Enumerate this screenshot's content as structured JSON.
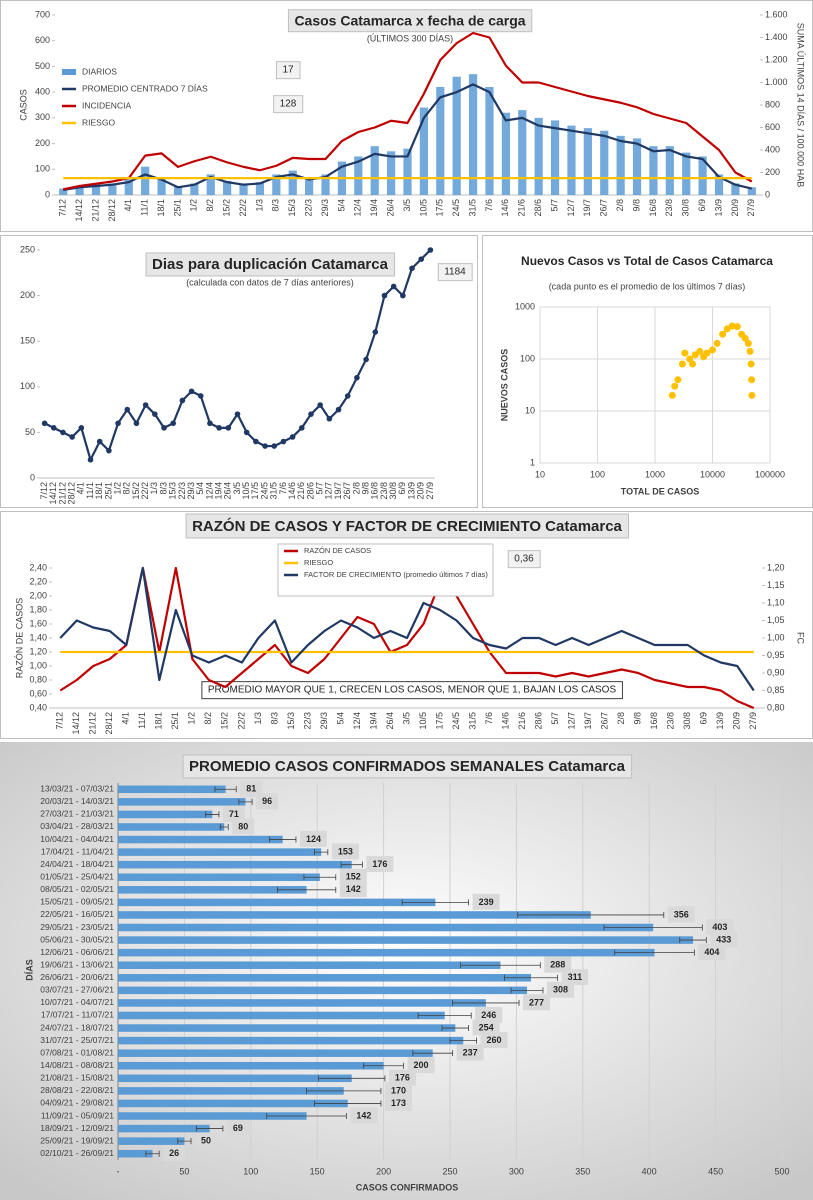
{
  "chart_data": [
    {
      "type": "line",
      "title": "Casos  Catamarca  x fecha de carga",
      "subtitle": "(ÚLTIMOS 300 DÍAS)",
      "ylabel": "CASOS",
      "y2label": "SUMA  ÚLTIMOS 14 DÍAS / 100.000 HAB",
      "annotations": [
        "17",
        "128"
      ],
      "legend": "upper left",
      "categories": [
        "7/12",
        "14/12",
        "21/12",
        "28/12",
        "4/1",
        "11/1",
        "18/1",
        "25/1",
        "1/2",
        "8/2",
        "15/2",
        "22/2",
        "1/3",
        "8/3",
        "15/3",
        "22/3",
        "29/3",
        "5/4",
        "12/4",
        "19/4",
        "26/4",
        "3/5",
        "10/5",
        "17/5",
        "24/5",
        "31/5",
        "7/6",
        "14/6",
        "21/6",
        "28/6",
        "5/7",
        "12/7",
        "19/7",
        "26/7",
        "2/8",
        "9/8",
        "16/8",
        "23/8",
        "30/8",
        "6/9",
        "13/9",
        "20/9",
        "27/9"
      ],
      "ylim": [
        0,
        700
      ],
      "yticks": [
        0,
        100,
        200,
        300,
        400,
        500,
        600,
        700
      ],
      "y2lim": [
        0,
        1600
      ],
      "y2ticks": [
        0,
        200,
        400,
        600,
        800,
        {
          "value": 1000,
          "label": "1.000"
        },
        {
          "value": 1200,
          "label": "1.200"
        },
        {
          "value": 1400,
          "label": "1.400"
        },
        {
          "value": 1600,
          "label": "1.600"
        }
      ],
      "series": [
        {
          "name": "DIARIOS",
          "type": "bar",
          "color": "#5b9bd5",
          "values": [
            25,
            35,
            40,
            45,
            60,
            110,
            70,
            35,
            45,
            80,
            55,
            45,
            50,
            80,
            95,
            70,
            80,
            130,
            150,
            190,
            170,
            180,
            340,
            420,
            460,
            470,
            420,
            320,
            330,
            300,
            290,
            270,
            260,
            250,
            230,
            220,
            190,
            190,
            165,
            150,
            80,
            45,
            30
          ]
        },
        {
          "name": "PROMEDIO CENTRADO 7 DÍAS",
          "color": "#1f3864",
          "values": [
            20,
            30,
            35,
            40,
            50,
            80,
            60,
            30,
            40,
            70,
            50,
            40,
            45,
            70,
            80,
            60,
            70,
            110,
            130,
            160,
            150,
            150,
            300,
            380,
            400,
            430,
            400,
            290,
            300,
            270,
            260,
            250,
            240,
            230,
            210,
            200,
            170,
            175,
            150,
            140,
            70,
            40,
            25
          ]
        },
        {
          "name": "INCIDENCIA",
          "color": "#c00000",
          "axis": "y2",
          "values": [
            50,
            80,
            100,
            120,
            150,
            350,
            370,
            250,
            300,
            340,
            290,
            250,
            220,
            260,
            330,
            320,
            320,
            480,
            560,
            600,
            660,
            640,
            900,
            1200,
            1350,
            1440,
            1400,
            1150,
            1000,
            1000,
            960,
            920,
            880,
            850,
            820,
            780,
            720,
            680,
            640,
            520,
            400,
            200,
            120
          ]
        },
        {
          "name": "RIESGO",
          "color": "#ffc000",
          "axis": "y2",
          "values": [
            150,
            150,
            150,
            150,
            150,
            150,
            150,
            150,
            150,
            150,
            150,
            150,
            150,
            150,
            150,
            150,
            150,
            150,
            150,
            150,
            150,
            150,
            150,
            150,
            150,
            150,
            150,
            150,
            150,
            150,
            150,
            150,
            150,
            150,
            150,
            150,
            150,
            150,
            150,
            150,
            150,
            150,
            150
          ]
        }
      ]
    },
    {
      "type": "line",
      "title": "Dias para duplicación Catamarca",
      "subtitle": "(calculada con datos de 7 días anteriores)",
      "annotations": [
        "1184"
      ],
      "markers": true,
      "categories": [
        "7/12",
        "14/12",
        "21/12",
        "28/12",
        "4/1",
        "11/1",
        "18/1",
        "25/1",
        "1/2",
        "8/2",
        "15/2",
        "22/2",
        "1/3",
        "8/3",
        "15/3",
        "22/3",
        "29/3",
        "5/4",
        "12/4",
        "19/4",
        "26/4",
        "3/5",
        "10/5",
        "17/5",
        "24/5",
        "31/5",
        "7/6",
        "14/6",
        "21/6",
        "28/6",
        "5/7",
        "12/7",
        "19/7",
        "26/7",
        "2/8",
        "9/8",
        "16/8",
        "23/8",
        "30/8",
        "6/9",
        "13/9",
        "20/9",
        "27/9"
      ],
      "ylim": [
        0,
        250
      ],
      "yticks": [
        0,
        50,
        100,
        150,
        200,
        250
      ],
      "series": [
        {
          "color": "#1f3864",
          "values": [
            60,
            55,
            50,
            45,
            55,
            20,
            40,
            30,
            60,
            75,
            60,
            80,
            70,
            55,
            60,
            85,
            95,
            90,
            60,
            55,
            55,
            70,
            50,
            40,
            35,
            35,
            40,
            45,
            55,
            70,
            80,
            65,
            75,
            90,
            110,
            130,
            160,
            200,
            210,
            200,
            230,
            240,
            250
          ]
        }
      ]
    },
    {
      "type": "scatter",
      "title": "Nuevos Casos vs Total de Casos Catamarca",
      "subtitle": "(cada punto es el promedio de los últimos 7 días)",
      "xlabel": "TOTAL DE CASOS",
      "ylabel": "NUEVOS CASOS",
      "xscale": "log",
      "yscale": "log",
      "grid": true,
      "color": "#ffc000",
      "xlim": [
        10,
        100000
      ],
      "xticks": [
        10,
        100,
        1000,
        10000,
        100000
      ],
      "ylim": [
        1,
        1000
      ],
      "yticks": [
        1,
        10,
        100,
        1000
      ],
      "x": [
        2000,
        2200,
        2500,
        3000,
        3300,
        4000,
        4500,
        5000,
        6000,
        7000,
        8000,
        10000,
        12000,
        15000,
        18000,
        22000,
        27000,
        32000,
        37000,
        42000,
        45000,
        47000,
        48000,
        48500
      ],
      "values": [
        20,
        30,
        40,
        80,
        130,
        100,
        80,
        120,
        140,
        110,
        130,
        150,
        200,
        300,
        380,
        430,
        420,
        300,
        250,
        200,
        140,
        80,
        40,
        20
      ]
    },
    {
      "type": "line",
      "title": "RAZÓN DE CASOS Y FACTOR DE CRECIMIENTO Catamarca",
      "ylabel": "RAZÓN  DE CASOS",
      "y2label": "FC",
      "legend": "upper center",
      "annotations": [
        "0,36",
        "PROMEDIO MAYOR QUE 1, CRECEN LOS CASOS, MENOR QUE 1, BAJAN LOS CASOS"
      ],
      "categories": [
        "7/12",
        "14/12",
        "21/12",
        "28/12",
        "4/1",
        "11/1",
        "18/1",
        "25/1",
        "1/2",
        "8/2",
        "15/2",
        "22/2",
        "1/3",
        "8/3",
        "15/3",
        "22/3",
        "29/3",
        "5/4",
        "12/4",
        "19/4",
        "26/4",
        "3/5",
        "10/5",
        "17/5",
        "24/5",
        "31/5",
        "7/6",
        "14/6",
        "21/6",
        "28/6",
        "5/7",
        "12/7",
        "19/7",
        "26/7",
        "2/8",
        "9/8",
        "16/8",
        "23/8",
        "30/8",
        "6/9",
        "13/9",
        "20/9",
        "27/9"
      ],
      "ylim": [
        0.4,
        2.4
      ],
      "yticks": [
        {
          "value": 0.4,
          "label": "0,40"
        },
        {
          "value": 0.6,
          "label": "0,60"
        },
        {
          "value": 0.8,
          "label": "0,80"
        },
        {
          "value": 1.0,
          "label": "1,00"
        },
        {
          "value": 1.2,
          "label": "1,20"
        },
        {
          "value": 1.4,
          "label": "1,40"
        },
        {
          "value": 1.6,
          "label": "1,60"
        },
        {
          "value": 1.8,
          "label": "1,80"
        },
        {
          "value": 2.0,
          "label": "2,00"
        },
        {
          "value": 2.2,
          "label": "2,20"
        },
        {
          "value": 2.4,
          "label": "2,40"
        }
      ],
      "y2lim": [
        0.8,
        1.2
      ],
      "y2ticks": [
        {
          "value": 0.8,
          "label": "0,80"
        },
        {
          "value": 0.85,
          "label": "0,85"
        },
        {
          "value": 0.9,
          "label": "0,90"
        },
        {
          "value": 0.95,
          "label": "0,95"
        },
        {
          "value": 1.0,
          "label": "1,00"
        },
        {
          "value": 1.05,
          "label": "1,05"
        },
        {
          "value": 1.1,
          "label": "1,10"
        },
        {
          "value": 1.15,
          "label": "1,15"
        },
        {
          "value": 1.2,
          "label": "1,20"
        }
      ],
      "series": [
        {
          "name": "RAZÓN DE CASOS",
          "color": "#c00000",
          "values": [
            0.65,
            0.8,
            1.0,
            1.1,
            1.3,
            2.4,
            1.2,
            2.4,
            1.1,
            0.8,
            0.7,
            0.9,
            1.1,
            1.3,
            1.0,
            0.9,
            1.1,
            1.4,
            1.7,
            1.6,
            1.2,
            1.3,
            1.6,
            2.2,
            2.0,
            1.6,
            1.2,
            0.9,
            0.9,
            0.9,
            0.85,
            0.9,
            0.85,
            0.9,
            0.95,
            0.9,
            0.8,
            0.75,
            0.7,
            0.7,
            0.65,
            0.5,
            0.4
          ]
        },
        {
          "name": "RIESGO",
          "color": "#ffc000",
          "values": [
            1.2,
            1.2,
            1.2,
            1.2,
            1.2,
            1.2,
            1.2,
            1.2,
            1.2,
            1.2,
            1.2,
            1.2,
            1.2,
            1.2,
            1.2,
            1.2,
            1.2,
            1.2,
            1.2,
            1.2,
            1.2,
            1.2,
            1.2,
            1.2,
            1.2,
            1.2,
            1.2,
            1.2,
            1.2,
            1.2,
            1.2,
            1.2,
            1.2,
            1.2,
            1.2,
            1.2,
            1.2,
            1.2,
            1.2,
            1.2,
            1.2,
            1.2,
            1.2
          ]
        },
        {
          "name": "FACTOR DE CRECIMIENTO (promedio últimos 7 días)",
          "color": "#1f3864",
          "axis": "y2",
          "values": [
            1.0,
            1.05,
            1.03,
            1.02,
            0.98,
            1.2,
            0.88,
            1.08,
            0.95,
            0.93,
            0.95,
            0.93,
            1.0,
            1.05,
            0.93,
            0.98,
            1.02,
            1.05,
            1.03,
            1.0,
            1.02,
            1.0,
            1.1,
            1.08,
            1.05,
            1.0,
            0.98,
            0.97,
            1.0,
            1.0,
            0.98,
            1.0,
            0.98,
            1.0,
            1.02,
            1.0,
            0.98,
            0.98,
            0.98,
            0.95,
            0.93,
            0.92,
            0.85
          ]
        }
      ]
    },
    {
      "type": "bar",
      "orientation": "horizontal",
      "title": "PROMEDIO CASOS CONFIRMADOS SEMANALES Catamarca",
      "xlabel": "CASOS CONFIRMADOS",
      "ylabel": "DÍAS",
      "grid": true,
      "color": "#5b9bd5",
      "xlim": [
        0,
        500
      ],
      "xticks": [
        {
          "value": 0,
          "label": "-"
        },
        50,
        100,
        150,
        200,
        250,
        300,
        350,
        400,
        450,
        500
      ],
      "categories": [
        "13/03/21 - 07/03/21",
        "20/03/21 - 14/03/21",
        "27/03/21 - 21/03/21",
        "03/04/21 - 28/03/21",
        "10/04/21 - 04/04/21",
        "17/04/21 - 11/04/21",
        "24/04/21 - 18/04/21",
        "01/05/21 - 25/04/21",
        "08/05/21 - 02/05/21",
        "15/05/21 - 09/05/21",
        "22/05/21 - 16/05/21",
        "29/05/21 - 23/05/21",
        "05/06/21 - 30/05/21",
        "12/06/21 - 06/06/21",
        "19/06/21 - 13/06/21",
        "26/06/21 - 20/06/21",
        "03/07/21 - 27/06/21",
        "10/07/21 - 04/07/21",
        "17/07/21 - 11/07/21",
        "24/07/21 - 18/07/21",
        "31/07/21 - 25/07/21",
        "07/08/21 - 01/08/21",
        "14/08/21 - 08/08/21",
        "21/08/21 - 15/08/21",
        "28/08/21 - 22/08/21",
        "04/09/21 - 29/08/21",
        "11/09/21 - 05/09/21",
        "18/09/21 - 12/09/21",
        "25/09/21 - 19/09/21",
        "02/10/21 - 26/09/21"
      ],
      "values": [
        81,
        96,
        71,
        80,
        124,
        153,
        176,
        152,
        142,
        239,
        356,
        403,
        433,
        404,
        288,
        311,
        308,
        277,
        246,
        254,
        260,
        237,
        200,
        176,
        170,
        173,
        142,
        69,
        50,
        26
      ],
      "errors": [
        8,
        5,
        5,
        3,
        10,
        5,
        8,
        12,
        22,
        25,
        55,
        37,
        10,
        30,
        30,
        20,
        12,
        25,
        20,
        10,
        10,
        15,
        15,
        25,
        28,
        25,
        30,
        10,
        5,
        5
      ]
    }
  ]
}
